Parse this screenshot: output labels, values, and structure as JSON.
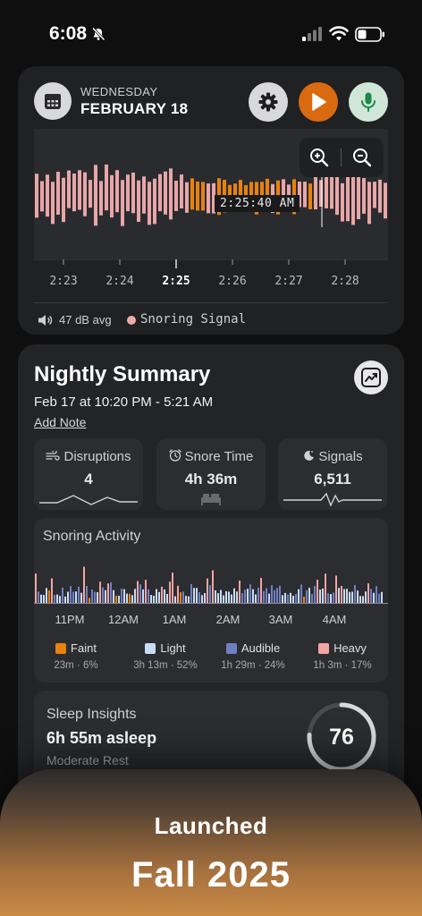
{
  "status_bar": {
    "time": "6:08"
  },
  "header": {
    "weekday": "WEDNESDAY",
    "date": "FEBRUARY 18",
    "accent_play": "#d96a10",
    "accent_mic": "#cfe6d8"
  },
  "waveform": {
    "cursor_time": "2:25:40 AM",
    "ticks": [
      "2:23",
      "2:24",
      "2:25",
      "2:26",
      "2:27",
      "2:28"
    ],
    "active_tick": "2:25",
    "db_avg": "47 dB avg",
    "legend_label": "Snoring Signal",
    "snore_color": "#f0a8a8",
    "bar_color": "#e8a6a8",
    "played_color": "#e8820e"
  },
  "summary": {
    "title": "Nightly Summary",
    "range": "Feb 17 at 10:20 PM - 5:21 AM",
    "add_note": "Add Note",
    "stats": [
      {
        "label": "Disruptions",
        "value": "4",
        "icon": "wind-icon"
      },
      {
        "label": "Snore Time",
        "value": "4h 36m",
        "icon": "alarm-clock-icon"
      },
      {
        "label": "Signals",
        "value": "6,511",
        "icon": "moon-stars-icon"
      }
    ],
    "activity": {
      "title": "Snoring Activity",
      "hours": [
        "11PM",
        "12AM",
        "1AM",
        "2AM",
        "3AM",
        "4AM"
      ],
      "legend": [
        {
          "label": "Faint",
          "detail": "23m · 6%",
          "color": "#e8820e"
        },
        {
          "label": "Light",
          "detail": "3h 13m · 52%",
          "color": "#c9dcf5"
        },
        {
          "label": "Audible",
          "detail": "1h 29m · 24%",
          "color": "#6f7fc4"
        },
        {
          "label": "Heavy",
          "detail": "1h 3m · 17%",
          "color": "#f2a5a5"
        }
      ]
    },
    "insights": {
      "title": "Sleep Insights",
      "main": "6h 55m asleep",
      "sub": "Moderate Rest",
      "score": "76",
      "score_fraction": 0.76
    }
  },
  "banner": {
    "small": "Launched",
    "big": "Fall 2025"
  }
}
